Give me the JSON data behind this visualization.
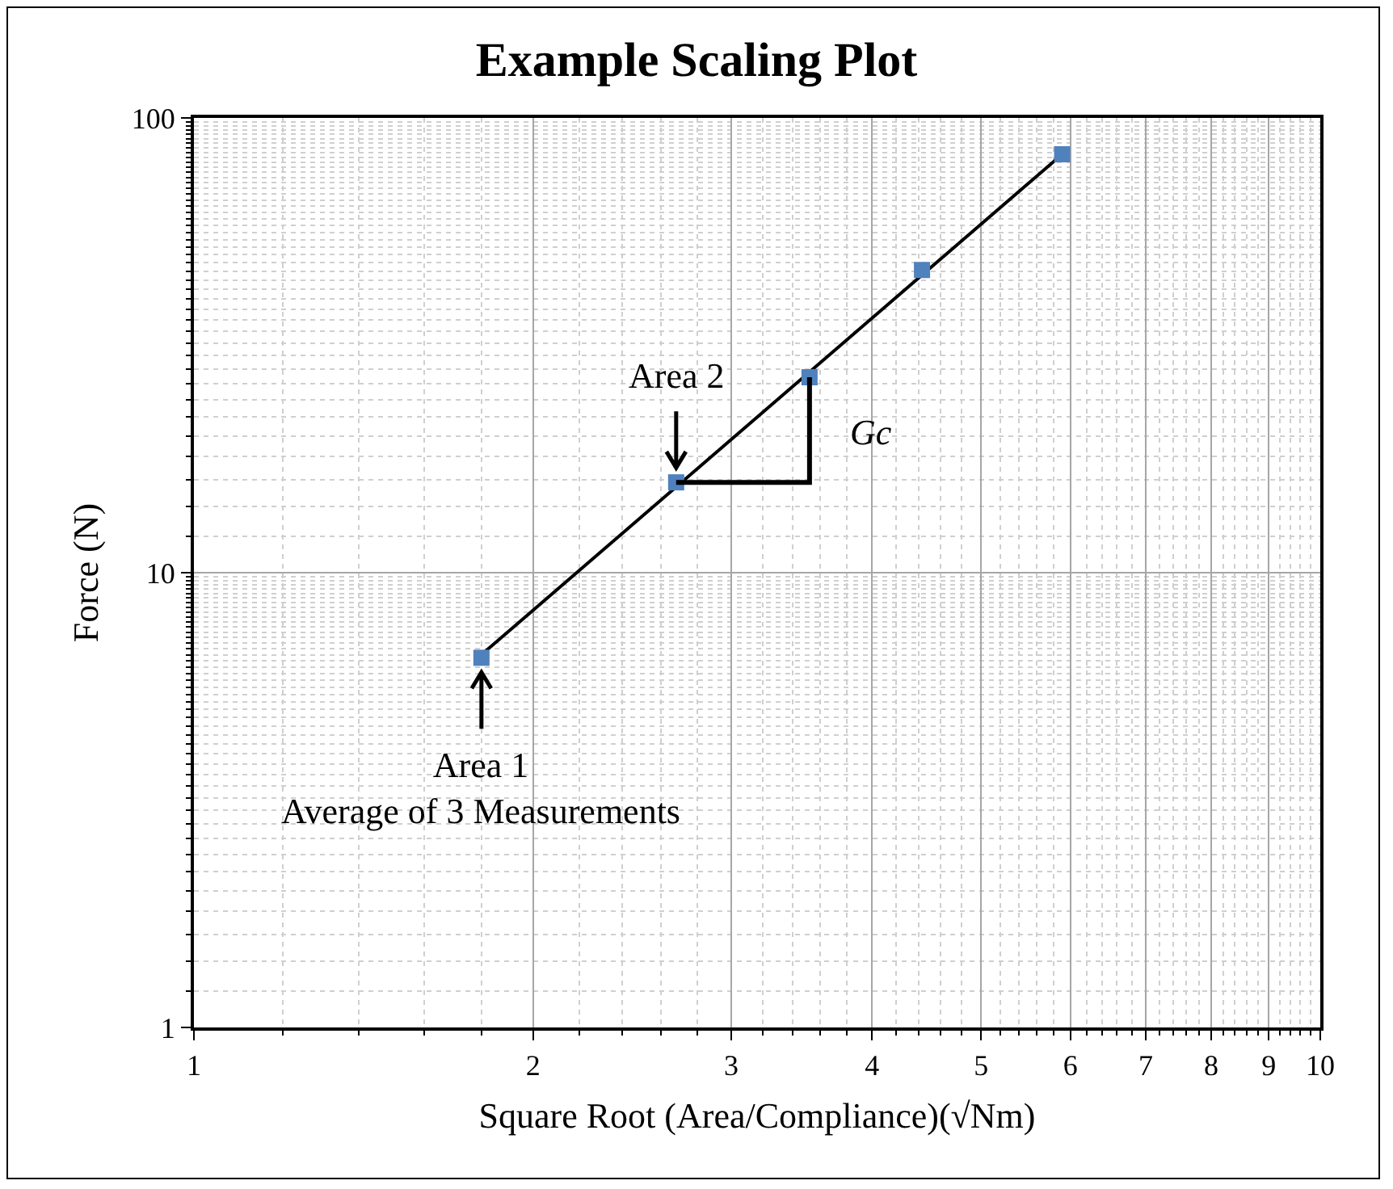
{
  "chart_data": {
    "type": "scatter",
    "title": "Example Scaling Plot",
    "xlabel": "Square Root (Area/Compliance)(√Nm)",
    "ylabel": "Force (N)",
    "log": "xy",
    "grid": true,
    "marker": "square",
    "xlim": [
      1,
      10
    ],
    "ylim": [
      1,
      100
    ],
    "xticks": [
      1,
      2,
      3,
      4,
      5,
      6,
      7,
      8,
      9,
      10
    ],
    "yticks": [
      1,
      10,
      100
    ],
    "series": [
      {
        "color": "#4f81bd",
        "x": [
          1.8,
          2.68,
          3.52,
          4.43,
          5.9
        ],
        "values": [
          6.5,
          15.8,
          26.9,
          46.3,
          83.2
        ]
      },
      {
        "type": "line",
        "marker": "none",
        "line_style": "solid",
        "color": "#000000",
        "x": [
          1.8,
          5.9
        ],
        "values": [
          6.6,
          83.2
        ]
      }
    ],
    "annotations": [
      {
        "text": "Area 2",
        "x": 2.68,
        "y": 15.8
      },
      {
        "text": "Area 1\nAverage of 3 Measurements",
        "x": 1.8,
        "y": 6.5
      },
      {
        "text": "Gc",
        "x": 3.1,
        "y": 21
      }
    ]
  }
}
